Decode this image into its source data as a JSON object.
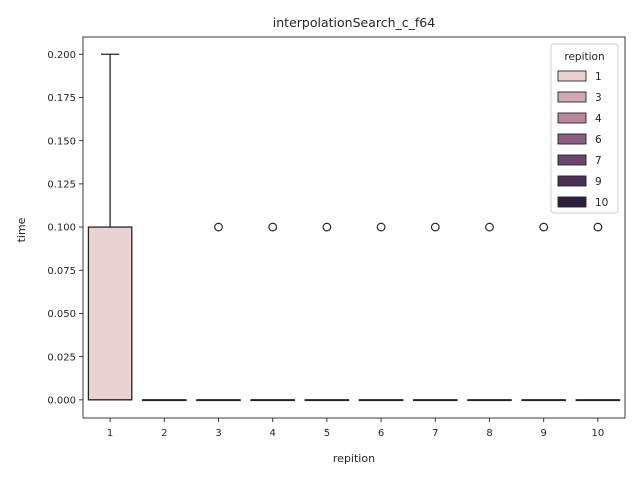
{
  "chart_data": {
    "type": "box",
    "title": "interpolationSearch_c_f64",
    "xlabel": "repition",
    "ylabel": "time",
    "categories": [
      "1",
      "2",
      "3",
      "4",
      "5",
      "6",
      "7",
      "8",
      "9",
      "10"
    ],
    "ylim": [
      -0.0105,
      0.21
    ],
    "yticks": [
      "0.000",
      "0.025",
      "0.050",
      "0.075",
      "0.100",
      "0.125",
      "0.150",
      "0.175",
      "0.200"
    ],
    "ytick_values": [
      0,
      0.025,
      0.05,
      0.075,
      0.1,
      0.125,
      0.15,
      0.175,
      0.2
    ],
    "boxes": [
      {
        "category": "1",
        "q1": 0,
        "median": 0,
        "q3": 0.1,
        "whisker_low": 0,
        "whisker_high": 0.2,
        "outliers": []
      },
      {
        "category": "2",
        "q1": 0,
        "median": 0,
        "q3": 0,
        "whisker_low": 0,
        "whisker_high": 0,
        "outliers": []
      },
      {
        "category": "3",
        "q1": 0,
        "median": 0,
        "q3": 0,
        "whisker_low": 0,
        "whisker_high": 0,
        "outliers": [
          0.1
        ]
      },
      {
        "category": "4",
        "q1": 0,
        "median": 0,
        "q3": 0,
        "whisker_low": 0,
        "whisker_high": 0,
        "outliers": [
          0.1
        ]
      },
      {
        "category": "5",
        "q1": 0,
        "median": 0,
        "q3": 0,
        "whisker_low": 0,
        "whisker_high": 0,
        "outliers": [
          0.1
        ]
      },
      {
        "category": "6",
        "q1": 0,
        "median": 0,
        "q3": 0,
        "whisker_low": 0,
        "whisker_high": 0,
        "outliers": [
          0.1
        ]
      },
      {
        "category": "7",
        "q1": 0,
        "median": 0,
        "q3": 0,
        "whisker_low": 0,
        "whisker_high": 0,
        "outliers": [
          0.1
        ]
      },
      {
        "category": "8",
        "q1": 0,
        "median": 0,
        "q3": 0,
        "whisker_low": 0,
        "whisker_high": 0,
        "outliers": [
          0.1
        ]
      },
      {
        "category": "9",
        "q1": 0,
        "median": 0,
        "q3": 0,
        "whisker_low": 0,
        "whisker_high": 0,
        "outliers": [
          0.1
        ]
      },
      {
        "category": "10",
        "q1": 0,
        "median": 0,
        "q3": 0,
        "whisker_low": 0,
        "whisker_high": 0,
        "outliers": [
          0.1
        ]
      }
    ],
    "legend": {
      "title": "repition",
      "placement": "top-right",
      "entries": [
        {
          "label": "1",
          "color": "#ead3d2"
        },
        {
          "label": "3",
          "color": "#d2a9b1"
        },
        {
          "label": "4",
          "color": "#b98799"
        },
        {
          "label": "6",
          "color": "#8c5e84"
        },
        {
          "label": "7",
          "color": "#6b4470"
        },
        {
          "label": "9",
          "color": "#4a2f57"
        },
        {
          "label": "10",
          "color": "#2d1e3e"
        }
      ]
    },
    "box_fill_color": "#ead3d2",
    "line_color": "#262626",
    "grid": false
  }
}
